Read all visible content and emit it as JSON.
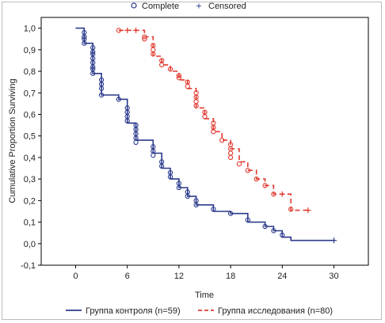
{
  "chart_data": {
    "type": "line",
    "step": true,
    "title": "",
    "xlabel": "Time",
    "ylabel": "Cumulative Proportion Surviving",
    "xlim": [
      -4,
      34
    ],
    "ylim": [
      -0.1,
      1.05
    ],
    "xticks": [
      "0",
      "6",
      "12",
      "18",
      "24",
      "30"
    ],
    "xtick_values": [
      0,
      6,
      12,
      18,
      24,
      30
    ],
    "yticks": [
      "-0,1",
      "0,0",
      "0,1",
      "0,2",
      "0,3",
      "0,4",
      "0,5",
      "0,6",
      "0,7",
      "0,8",
      "0,9",
      "1,0"
    ],
    "ytick_values": [
      -0.1,
      0,
      0.1,
      0.2,
      0.3,
      0.4,
      0.5,
      0.6,
      0.7,
      0.8,
      0.9,
      1.0
    ],
    "grid": false,
    "marker_legend": {
      "complete": "Complete",
      "censored": "Censored"
    },
    "legend_position": "bottom",
    "series": [
      {
        "name": "Группа контроля (n=59)",
        "color": "#2b3a8c",
        "linestyle": "solid",
        "steps": [
          [
            0,
            1.0
          ],
          [
            1,
            0.93
          ],
          [
            2,
            0.79
          ],
          [
            3,
            0.69
          ],
          [
            5,
            0.67
          ],
          [
            6,
            0.56
          ],
          [
            7,
            0.48
          ],
          [
            9,
            0.42
          ],
          [
            10,
            0.35
          ],
          [
            11,
            0.3
          ],
          [
            12,
            0.26
          ],
          [
            13,
            0.22
          ],
          [
            14,
            0.18
          ],
          [
            16,
            0.15
          ],
          [
            18,
            0.14
          ],
          [
            20,
            0.1
          ],
          [
            22,
            0.08
          ],
          [
            23,
            0.06
          ],
          [
            24,
            0.03
          ],
          [
            25,
            0.015
          ],
          [
            30,
            0.015
          ]
        ],
        "complete_events": [
          [
            1,
            0.98
          ],
          [
            1,
            0.96
          ],
          [
            1,
            0.95
          ],
          [
            1,
            0.93
          ],
          [
            2,
            0.91
          ],
          [
            2,
            0.89
          ],
          [
            2,
            0.88
          ],
          [
            2,
            0.86
          ],
          [
            2,
            0.84
          ],
          [
            2,
            0.82
          ],
          [
            2,
            0.81
          ],
          [
            2,
            0.79
          ],
          [
            3,
            0.76
          ],
          [
            3,
            0.74
          ],
          [
            3,
            0.72
          ],
          [
            3,
            0.69
          ],
          [
            5,
            0.67
          ],
          [
            6,
            0.63
          ],
          [
            6,
            0.61
          ],
          [
            6,
            0.59
          ],
          [
            6,
            0.57
          ],
          [
            7,
            0.55
          ],
          [
            7,
            0.53
          ],
          [
            7,
            0.51
          ],
          [
            7,
            0.49
          ],
          [
            7,
            0.47
          ],
          [
            9,
            0.45
          ],
          [
            9,
            0.43
          ],
          [
            9,
            0.41
          ],
          [
            10,
            0.38
          ],
          [
            10,
            0.36
          ],
          [
            11,
            0.33
          ],
          [
            11,
            0.31
          ],
          [
            12,
            0.28
          ],
          [
            12,
            0.26
          ],
          [
            13,
            0.24
          ],
          [
            13,
            0.22
          ],
          [
            14,
            0.2
          ],
          [
            14,
            0.18
          ],
          [
            16,
            0.16
          ],
          [
            18,
            0.14
          ],
          [
            20,
            0.11
          ],
          [
            22,
            0.08
          ],
          [
            23,
            0.06
          ],
          [
            24,
            0.04
          ]
        ],
        "censored": [
          [
            30,
            0.015
          ]
        ]
      },
      {
        "name": "Группа исследования (n=80)",
        "color": "#e03a2f",
        "linestyle": "dashed",
        "steps": [
          [
            5,
            0.99
          ],
          [
            8,
            0.96
          ],
          [
            9,
            0.87
          ],
          [
            10,
            0.83
          ],
          [
            11,
            0.8
          ],
          [
            12,
            0.76
          ],
          [
            13,
            0.72
          ],
          [
            14,
            0.63
          ],
          [
            15,
            0.58
          ],
          [
            16,
            0.52
          ],
          [
            17,
            0.48
          ],
          [
            18,
            0.44
          ],
          [
            19,
            0.38
          ],
          [
            20,
            0.34
          ],
          [
            21,
            0.3
          ],
          [
            22,
            0.27
          ],
          [
            23,
            0.23
          ],
          [
            25,
            0.155
          ],
          [
            27,
            0.155
          ]
        ],
        "complete_events": [
          [
            5,
            0.99
          ],
          [
            8,
            0.96
          ],
          [
            8,
            0.95
          ],
          [
            9,
            0.92
          ],
          [
            9,
            0.9
          ],
          [
            9,
            0.88
          ],
          [
            10,
            0.85
          ],
          [
            10,
            0.83
          ],
          [
            11,
            0.81
          ],
          [
            12,
            0.78
          ],
          [
            12,
            0.77
          ],
          [
            13,
            0.75
          ],
          [
            13,
            0.73
          ],
          [
            14,
            0.7
          ],
          [
            14,
            0.68
          ],
          [
            14,
            0.66
          ],
          [
            14,
            0.64
          ],
          [
            15,
            0.61
          ],
          [
            15,
            0.59
          ],
          [
            16,
            0.56
          ],
          [
            16,
            0.54
          ],
          [
            16,
            0.52
          ],
          [
            17,
            0.48
          ],
          [
            18,
            0.46
          ],
          [
            18,
            0.44
          ],
          [
            18,
            0.42
          ],
          [
            18,
            0.4
          ],
          [
            19,
            0.37
          ],
          [
            20,
            0.34
          ],
          [
            21,
            0.3
          ],
          [
            22,
            0.27
          ],
          [
            23,
            0.23
          ],
          [
            25,
            0.16
          ]
        ],
        "censored": [
          [
            6,
            0.99
          ],
          [
            7,
            0.99
          ],
          [
            24,
            0.23
          ],
          [
            27,
            0.155
          ]
        ]
      }
    ]
  }
}
